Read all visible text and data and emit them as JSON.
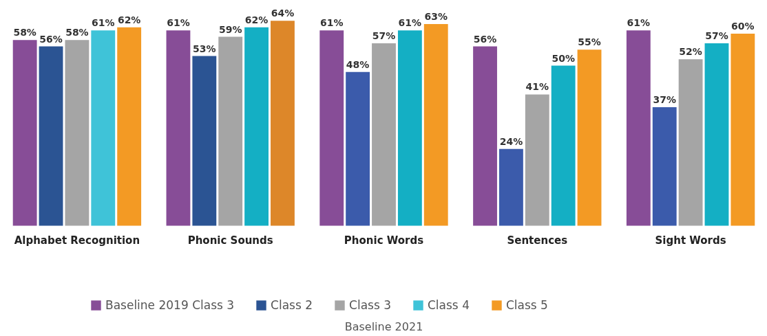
{
  "chart_data": {
    "type": "bar",
    "categories": [
      "Alphabet Recognition",
      "Phonic Sounds",
      "Phonic Words",
      "Sentences",
      "Sight Words"
    ],
    "series": [
      {
        "name": "Baseline 2019 Class 3",
        "color": "#874d97",
        "values": [
          58,
          61,
          61,
          56,
          61
        ],
        "value_labels": [
          "58%",
          "61%",
          "61%",
          "56%",
          "61%"
        ]
      },
      {
        "name": "Class 2",
        "color": "#2b5493",
        "colors": [
          "#2b5493",
          "#2b5493",
          "#3b5bab",
          "#3b5bab",
          "#3b5bab"
        ],
        "values": [
          56,
          53,
          48,
          24,
          37
        ],
        "value_labels": [
          "56%",
          "53%",
          "48%",
          "24%",
          "37%"
        ]
      },
      {
        "name": "Class 3",
        "color": "#a5a5a5",
        "values": [
          58,
          59,
          57,
          41,
          52
        ],
        "value_labels": [
          "58%",
          "59%",
          "57%",
          "41%",
          "52%"
        ]
      },
      {
        "name": "Class 4",
        "color": "#3fc3d8",
        "colors": [
          "#3fc3d8",
          "#14afc4",
          "#14afc4",
          "#14afc4",
          "#14afc4"
        ],
        "values": [
          61,
          62,
          61,
          50,
          57
        ],
        "value_labels": [
          "61%",
          "62%",
          "61%",
          "50%",
          "57%"
        ]
      },
      {
        "name": "Class 5",
        "color": "#f39a24",
        "colors": [
          "#f39a24",
          "#dd8729",
          "#f39a24",
          "#f39a24",
          "#f39a24"
        ],
        "values": [
          62,
          64,
          63,
          55,
          60
        ],
        "value_labels": [
          "62%",
          "64%",
          "63%",
          "55%",
          "60%"
        ]
      }
    ],
    "legend": "bottom",
    "annotations": [
      "Baseline 2021"
    ]
  }
}
